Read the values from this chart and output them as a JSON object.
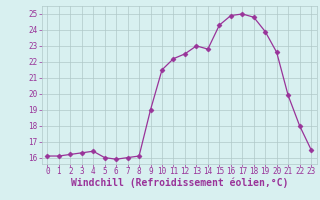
{
  "x": [
    0,
    1,
    2,
    3,
    4,
    5,
    6,
    7,
    8,
    9,
    10,
    11,
    12,
    13,
    14,
    15,
    16,
    17,
    18,
    19,
    20,
    21,
    22,
    23
  ],
  "y": [
    16.1,
    16.1,
    16.2,
    16.3,
    16.4,
    16.0,
    15.9,
    16.0,
    16.1,
    19.0,
    21.5,
    22.2,
    22.5,
    23.0,
    22.8,
    24.3,
    24.9,
    25.0,
    24.8,
    23.9,
    22.6,
    19.9,
    18.0,
    16.5
  ],
  "line_color": "#993399",
  "marker": "D",
  "marker_size": 2.5,
  "bg_color": "#d8f0f0",
  "grid_color": "#b0c8c8",
  "xlabel": "Windchill (Refroidissement éolien,°C)",
  "yticks": [
    16,
    17,
    18,
    19,
    20,
    21,
    22,
    23,
    24,
    25
  ],
  "xticks": [
    0,
    1,
    2,
    3,
    4,
    5,
    6,
    7,
    8,
    9,
    10,
    11,
    12,
    13,
    14,
    15,
    16,
    17,
    18,
    19,
    20,
    21,
    22,
    23
  ],
  "xlim": [
    -0.5,
    23.5
  ],
  "ylim": [
    15.6,
    25.5
  ],
  "tick_color": "#993399",
  "tick_fontsize": 5.5,
  "xlabel_fontsize": 7,
  "xlabel_color": "#993399"
}
